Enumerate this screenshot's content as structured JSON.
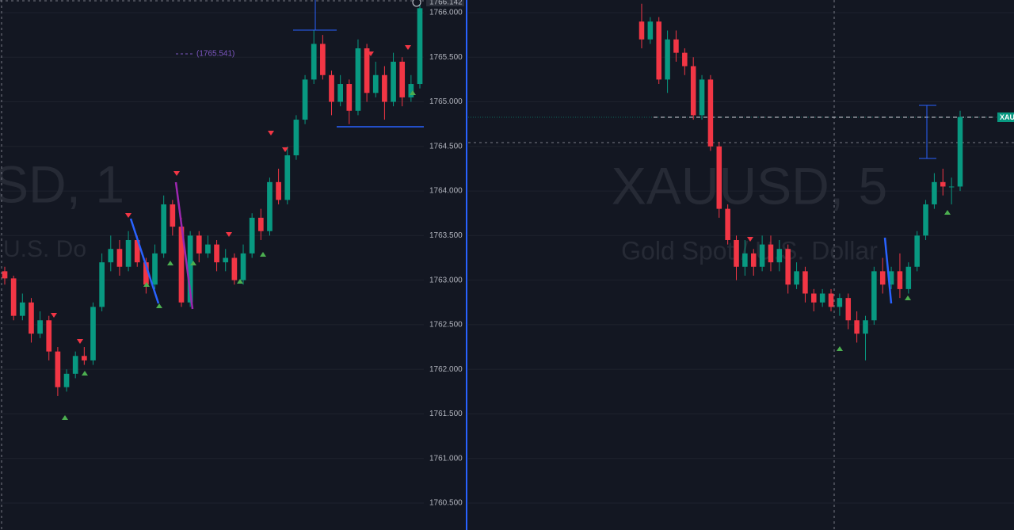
{
  "chart_data": [
    {
      "type": "candlestick",
      "watermark": "SD, 1",
      "watermark_sub": "U.S. Do",
      "price_label": "1766.142",
      "annotation": "(1765.541)",
      "ylim": [
        1760.198,
        1766.142
      ],
      "yticks": [
        {
          "value": 1766,
          "label": "1766.000"
        },
        {
          "value": 1765.5,
          "label": "1765.500"
        },
        {
          "value": 1765,
          "label": "1765.000"
        },
        {
          "value": 1764.5,
          "label": "1764.500"
        },
        {
          "value": 1764,
          "label": "1764.000"
        },
        {
          "value": 1763.5,
          "label": "1763.500"
        },
        {
          "value": 1763,
          "label": "1763.000"
        },
        {
          "value": 1762.5,
          "label": "1762.500"
        },
        {
          "value": 1762,
          "label": "1762.000"
        },
        {
          "value": 1761.5,
          "label": "1761.500"
        },
        {
          "value": 1761,
          "label": "1761.000"
        },
        {
          "value": 1760.5,
          "label": "1760.500"
        }
      ],
      "grid": true,
      "up_color": "#089981",
      "down_color": "#f23645",
      "ohlc": [
        [
          1763.1,
          1763.15,
          1762.95,
          1763.02
        ],
        [
          1763.02,
          1763.05,
          1762.55,
          1762.6
        ],
        [
          1762.6,
          1762.85,
          1762.55,
          1762.75
        ],
        [
          1762.75,
          1762.8,
          1762.3,
          1762.4
        ],
        [
          1762.4,
          1762.65,
          1762.35,
          1762.55
        ],
        [
          1762.55,
          1762.6,
          1762.1,
          1762.2
        ],
        [
          1762.2,
          1762.25,
          1761.7,
          1761.8
        ],
        [
          1761.8,
          1762.0,
          1761.75,
          1761.95
        ],
        [
          1761.95,
          1762.2,
          1761.9,
          1762.15
        ],
        [
          1762.15,
          1762.25,
          1762.05,
          1762.1
        ],
        [
          1762.1,
          1762.75,
          1762.05,
          1762.7
        ],
        [
          1762.7,
          1763.3,
          1762.65,
          1763.2
        ],
        [
          1763.2,
          1763.5,
          1763.1,
          1763.35
        ],
        [
          1763.35,
          1763.45,
          1763.05,
          1763.15
        ],
        [
          1763.15,
          1763.55,
          1763.1,
          1763.45
        ],
        [
          1763.45,
          1763.5,
          1763.15,
          1763.2
        ],
        [
          1763.2,
          1763.25,
          1762.85,
          1762.95
        ],
        [
          1762.95,
          1763.4,
          1762.9,
          1763.3
        ],
        [
          1763.3,
          1763.95,
          1763.25,
          1763.85
        ],
        [
          1763.85,
          1763.9,
          1763.5,
          1763.6
        ],
        [
          1763.6,
          1763.7,
          1762.7,
          1762.75
        ],
        [
          1762.75,
          1763.55,
          1762.7,
          1763.5
        ],
        [
          1763.5,
          1763.55,
          1763.2,
          1763.3
        ],
        [
          1763.3,
          1763.5,
          1763.25,
          1763.4
        ],
        [
          1763.4,
          1763.45,
          1763.1,
          1763.2
        ],
        [
          1763.2,
          1763.35,
          1763.1,
          1763.25
        ],
        [
          1763.25,
          1763.3,
          1762.95,
          1763.0
        ],
        [
          1763.0,
          1763.4,
          1762.95,
          1763.3
        ],
        [
          1763.3,
          1763.75,
          1763.25,
          1763.7
        ],
        [
          1763.7,
          1763.8,
          1763.45,
          1763.55
        ],
        [
          1763.55,
          1764.15,
          1763.5,
          1764.1
        ],
        [
          1764.1,
          1764.25,
          1763.85,
          1763.9
        ],
        [
          1763.9,
          1764.5,
          1763.85,
          1764.4
        ],
        [
          1764.4,
          1764.85,
          1764.35,
          1764.8
        ],
        [
          1764.8,
          1765.3,
          1764.75,
          1765.25
        ],
        [
          1765.25,
          1765.8,
          1765.2,
          1765.65
        ],
        [
          1765.65,
          1765.75,
          1765.25,
          1765.3
        ],
        [
          1765.3,
          1765.35,
          1764.85,
          1765.0
        ],
        [
          1765.0,
          1765.3,
          1764.95,
          1765.2
        ],
        [
          1765.2,
          1765.25,
          1764.75,
          1764.9
        ],
        [
          1764.9,
          1765.7,
          1764.85,
          1765.6
        ],
        [
          1765.6,
          1765.65,
          1765.0,
          1765.1
        ],
        [
          1765.1,
          1765.45,
          1765.05,
          1765.3
        ],
        [
          1765.3,
          1765.4,
          1764.8,
          1765.0
        ],
        [
          1765.0,
          1765.55,
          1764.95,
          1765.45
        ],
        [
          1765.45,
          1765.5,
          1764.95,
          1765.05
        ],
        [
          1765.05,
          1765.3,
          1765.0,
          1765.2
        ],
        [
          1765.2,
          1766.14,
          1765.15,
          1766.05
        ]
      ]
    },
    {
      "type": "candlestick",
      "watermark": "XAUUSD, 5",
      "watermark_sub": "Gold Spot / U.S. Dollar",
      "price_label": "XAU",
      "ylim": [
        1760.198,
        1766.142
      ],
      "up_color": "#089981",
      "down_color": "#f23645",
      "ohlc": [
        [
          1765.9,
          1766.1,
          1765.6,
          1765.7
        ],
        [
          1765.7,
          1765.95,
          1765.65,
          1765.9
        ],
        [
          1765.9,
          1765.95,
          1765.2,
          1765.25
        ],
        [
          1765.25,
          1765.8,
          1765.1,
          1765.7
        ],
        [
          1765.7,
          1765.8,
          1765.45,
          1765.55
        ],
        [
          1765.55,
          1765.6,
          1765.3,
          1765.4
        ],
        [
          1765.4,
          1765.5,
          1764.8,
          1764.85
        ],
        [
          1764.85,
          1765.3,
          1764.8,
          1765.25
        ],
        [
          1765.25,
          1765.3,
          1764.45,
          1764.5
        ],
        [
          1764.5,
          1764.55,
          1763.7,
          1763.8
        ],
        [
          1763.8,
          1763.85,
          1763.4,
          1763.45
        ],
        [
          1763.45,
          1763.5,
          1763.0,
          1763.15
        ],
        [
          1763.15,
          1763.45,
          1763.05,
          1763.3
        ],
        [
          1763.3,
          1763.35,
          1763.05,
          1763.15
        ],
        [
          1763.15,
          1763.5,
          1763.1,
          1763.4
        ],
        [
          1763.4,
          1763.5,
          1763.1,
          1763.2
        ],
        [
          1763.2,
          1763.45,
          1763.1,
          1763.35
        ],
        [
          1763.35,
          1763.4,
          1762.85,
          1762.95
        ],
        [
          1762.95,
          1763.2,
          1762.9,
          1763.1
        ],
        [
          1763.1,
          1763.15,
          1762.75,
          1762.85
        ],
        [
          1762.85,
          1762.9,
          1762.65,
          1762.75
        ],
        [
          1762.75,
          1762.9,
          1762.7,
          1762.85
        ],
        [
          1762.85,
          1762.9,
          1762.65,
          1762.7
        ],
        [
          1762.7,
          1762.85,
          1762.6,
          1762.8
        ],
        [
          1762.8,
          1762.85,
          1762.45,
          1762.55
        ],
        [
          1762.55,
          1762.65,
          1762.3,
          1762.4
        ],
        [
          1762.4,
          1762.6,
          1762.1,
          1762.55
        ],
        [
          1762.55,
          1763.15,
          1762.5,
          1763.1
        ],
        [
          1763.1,
          1763.25,
          1762.85,
          1762.95
        ],
        [
          1762.95,
          1763.15,
          1762.9,
          1763.1
        ],
        [
          1763.1,
          1763.3,
          1762.8,
          1762.9
        ],
        [
          1762.9,
          1763.2,
          1762.85,
          1763.15
        ],
        [
          1763.15,
          1763.55,
          1763.1,
          1763.5
        ],
        [
          1763.5,
          1763.9,
          1763.45,
          1763.85
        ],
        [
          1763.85,
          1764.2,
          1763.8,
          1764.1
        ],
        [
          1764.1,
          1764.25,
          1763.95,
          1764.05
        ],
        [
          1764.05,
          1764.15,
          1763.85,
          1764.05
        ],
        [
          1764.05,
          1764.9,
          1764.0,
          1764.83
        ]
      ]
    }
  ]
}
